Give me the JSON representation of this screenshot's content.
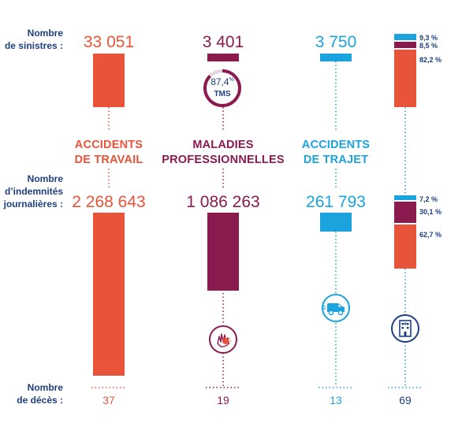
{
  "labels": {
    "sinistres": "Nombre\nde sinistres :",
    "indemnites": "Nombre\nd’indemnités\njournalières :",
    "deces": "Nombre\nde décès :"
  },
  "colors": {
    "at": "#e8543a",
    "mp": "#8b1a4f",
    "trajet": "#1aa3dc",
    "label": "#1d3f7f"
  },
  "chart_data": {
    "type": "bar",
    "categories": [
      {
        "id": "at",
        "label": "ACCIDENTS\nDE TRAVAIL",
        "sinistres": 33051,
        "sinistres_text": "33 051",
        "indemnites": 2268643,
        "indemnites_text": "2 268 643",
        "deces": 37,
        "deces_text": "37"
      },
      {
        "id": "mp",
        "label": "MALADIES\nPROFESSIONNELLES",
        "sinistres": 3401,
        "sinistres_text": "3 401",
        "indemnites": 1086263,
        "indemnites_text": "1 086 263",
        "deces": 19,
        "deces_text": "19"
      },
      {
        "id": "trajet",
        "label": "ACCIDENTS\nDE TRAJET",
        "sinistres": 3750,
        "sinistres_text": "3 750",
        "indemnites": 261793,
        "indemnites_text": "261 793",
        "deces": 13,
        "deces_text": "13"
      }
    ],
    "tms": {
      "value": 87.4,
      "value_text": "87,4",
      "unit": "%",
      "label": "TMS"
    },
    "share_sinistres": [
      {
        "id": "trajet",
        "value": 9.3,
        "text": "9,3 %"
      },
      {
        "id": "mp",
        "value": 8.5,
        "text": "8,5 %"
      },
      {
        "id": "at",
        "value": 82.2,
        "text": "82,2 %"
      }
    ],
    "share_indemnites": [
      {
        "id": "trajet",
        "value": 7.2,
        "text": "7,2 %"
      },
      {
        "id": "mp",
        "value": 30.1,
        "text": "30,1 %"
      },
      {
        "id": "at",
        "value": 62.7,
        "text": "62,7 %"
      }
    ],
    "total_deces": 69,
    "total_deces_text": "69"
  },
  "icons": {
    "mp": "inflamed-hand-icon",
    "trajet": "van-icon",
    "total": "building-icon"
  }
}
